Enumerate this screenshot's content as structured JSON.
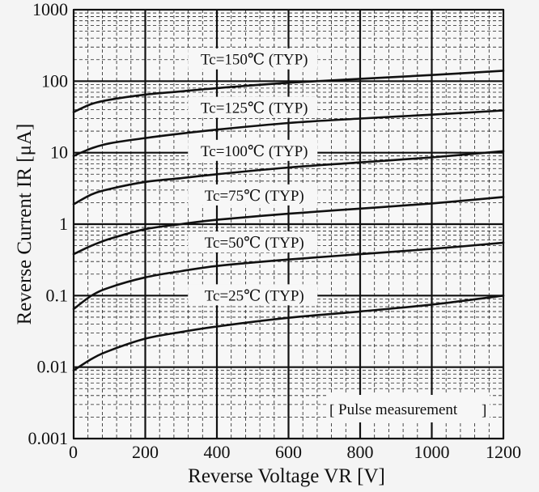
{
  "chart_data": {
    "type": "line",
    "xlabel": "Reverse Voltage  VR [V]",
    "ylabel": "Reverse Current IR [μA]",
    "xlim": [
      0,
      1200
    ],
    "ylim": [
      0.001,
      1000
    ],
    "y_scale": "log",
    "x_ticks": [
      "0",
      "200",
      "400",
      "600",
      "800",
      "1000",
      "1200"
    ],
    "y_ticks": [
      "0.001",
      "0.01",
      "0.1",
      "1",
      "10",
      "100",
      "1000"
    ],
    "grid": true,
    "annotation": "Pulse measurement",
    "series": [
      {
        "name": "Tc=150℃ (TYP)",
        "x": [
          0,
          50,
          100,
          200,
          300,
          400,
          600,
          800,
          1000,
          1200
        ],
        "y": [
          37,
          48,
          55,
          65,
          72,
          80,
          95,
          108,
          122,
          140
        ]
      },
      {
        "name": "Tc=125℃ (TYP)",
        "x": [
          0,
          50,
          100,
          200,
          300,
          400,
          600,
          800,
          1000,
          1200
        ],
        "y": [
          9,
          11.5,
          13.5,
          16,
          18.5,
          21,
          26,
          30,
          34,
          39
        ]
      },
      {
        "name": "Tc=100℃ (TYP)",
        "x": [
          0,
          50,
          100,
          200,
          300,
          400,
          600,
          800,
          1000,
          1200
        ],
        "y": [
          1.9,
          2.6,
          3.1,
          3.9,
          4.4,
          5,
          6.2,
          7.3,
          8.6,
          10.5
        ]
      },
      {
        "name": "Tc=75℃ (TYP)",
        "x": [
          0,
          50,
          100,
          200,
          300,
          400,
          600,
          800,
          1000,
          1200
        ],
        "y": [
          0.38,
          0.5,
          0.62,
          0.85,
          1.0,
          1.15,
          1.4,
          1.65,
          1.95,
          2.4
        ]
      },
      {
        "name": "Tc=50℃ (TYP)",
        "x": [
          0,
          50,
          100,
          200,
          300,
          400,
          600,
          800,
          1000,
          1200
        ],
        "y": [
          0.065,
          0.1,
          0.13,
          0.18,
          0.22,
          0.26,
          0.32,
          0.38,
          0.45,
          0.55
        ]
      },
      {
        "name": "Tc=25℃ (TYP)",
        "x": [
          0,
          50,
          100,
          200,
          300,
          400,
          600,
          800,
          1000,
          1200
        ],
        "y": [
          0.009,
          0.013,
          0.017,
          0.025,
          0.031,
          0.037,
          0.049,
          0.06,
          0.075,
          0.1
        ]
      }
    ],
    "label_x": [
      500,
      500,
      500,
      500,
      500,
      500
    ],
    "label_y": [
      200,
      42,
      10.5,
      2.5,
      0.55,
      0.1
    ]
  },
  "colors": {
    "line": "#111111",
    "grid_major": "#111111",
    "grid_minor": "#222222",
    "background": "#f4f4f4",
    "plot_bg": "#f7f7f7"
  }
}
